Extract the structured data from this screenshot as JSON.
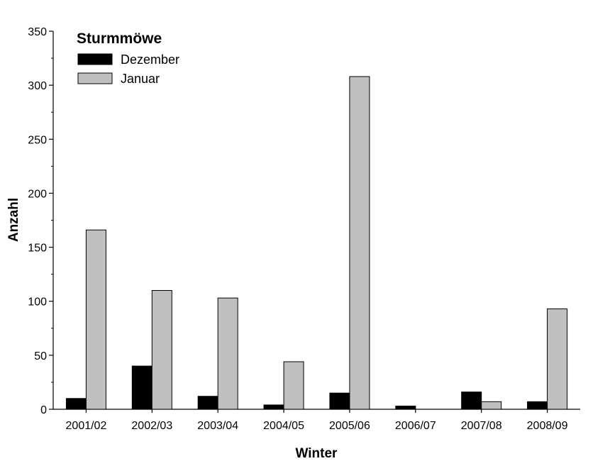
{
  "chart_data": {
    "type": "bar",
    "title": "Sturmmöwe",
    "xlabel": "Winter",
    "ylabel": "Anzahl",
    "categories": [
      "2001/02",
      "2002/03",
      "2003/04",
      "2004/05",
      "2005/06",
      "2006/07",
      "2007/08",
      "2008/09"
    ],
    "series": [
      {
        "name": "Dezember",
        "color": "#000000",
        "values": [
          10,
          40,
          12,
          4,
          15,
          3,
          16,
          7
        ]
      },
      {
        "name": "Januar",
        "color": "#c0c0c0",
        "values": [
          166,
          110,
          103,
          44,
          308,
          0,
          7,
          93
        ]
      }
    ],
    "ylim": [
      0,
      350
    ],
    "yticks": [
      0,
      50,
      100,
      150,
      200,
      250,
      300,
      350
    ],
    "legend_position": "top-left",
    "grid": false
  }
}
